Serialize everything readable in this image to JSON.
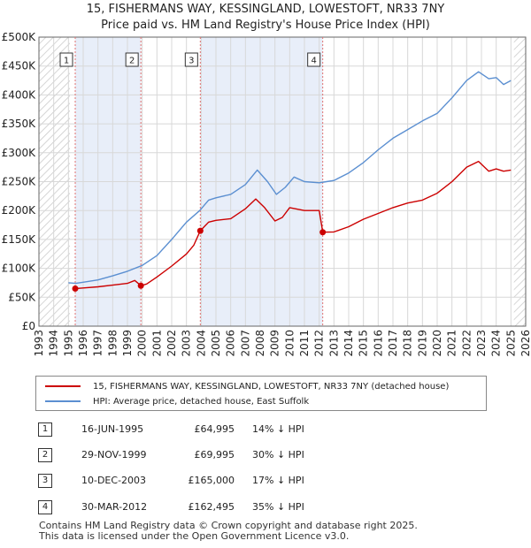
{
  "chart_data": {
    "type": "line",
    "title": "15, FISHERMANS WAY, KESSINGLAND, LOWESTOFT, NR33 7NY",
    "subtitle": "Price paid vs. HM Land Registry's House Price Index (HPI)",
    "xlim": [
      1993,
      2026
    ],
    "ylim": [
      0,
      500000
    ],
    "y_ticks": [
      0,
      50000,
      100000,
      150000,
      200000,
      250000,
      300000,
      350000,
      400000,
      450000,
      500000
    ],
    "y_tick_labels": [
      "£0",
      "£50K",
      "£100K",
      "£150K",
      "£200K",
      "£250K",
      "£300K",
      "£350K",
      "£400K",
      "£450K",
      "£500K"
    ],
    "x_ticks": [
      1993,
      1994,
      1995,
      1996,
      1997,
      1998,
      1999,
      2000,
      2001,
      2002,
      2003,
      2004,
      2005,
      2006,
      2007,
      2008,
      2009,
      2010,
      2011,
      2012,
      2013,
      2014,
      2015,
      2016,
      2017,
      2018,
      2019,
      2020,
      2021,
      2022,
      2023,
      2024,
      2025,
      2026
    ],
    "hatched_ranges": [
      [
        1993,
        1995.1
      ],
      [
        2025.2,
        2026
      ]
    ],
    "series": [
      {
        "name": "15, FISHERMANS WAY, KESSINGLAND, LOWESTOFT, NR33 7NY (detached house)",
        "color": "#cc0000",
        "x": [
          1995.46,
          1996,
          1997,
          1998,
          1999.0,
          1999.5,
          1999.91,
          2000.3,
          2001,
          2002,
          2003.0,
          2003.5,
          2003.94,
          2004.5,
          2005,
          2006,
          2007,
          2007.7,
          2008.3,
          2009,
          2009.5,
          2010,
          2011,
          2012.0,
          2012.24,
          2013,
          2014,
          2015,
          2016,
          2017,
          2018,
          2019,
          2020,
          2021,
          2022,
          2022.8,
          2023.5,
          2024,
          2024.5,
          2025.0
        ],
        "values": [
          64995,
          66000,
          68000,
          71000,
          74000,
          79000,
          69995,
          73000,
          85000,
          104000,
          125000,
          140000,
          165000,
          180000,
          183000,
          186000,
          203000,
          220000,
          205000,
          182000,
          188000,
          205000,
          200000,
          200000,
          162495,
          163000,
          172000,
          185000,
          195000,
          205000,
          213000,
          218000,
          230000,
          250000,
          275000,
          285000,
          268000,
          272000,
          268000,
          270000
        ]
      },
      {
        "name": "HPI: Average price, detached house, East Suffolk",
        "color": "#5b8fd1",
        "x": [
          1995.0,
          1995.5,
          1996,
          1997,
          1998,
          1999,
          2000,
          2001,
          2002,
          2003,
          2003.9,
          2004.5,
          2005,
          2006,
          2007,
          2007.8,
          2008.5,
          2009.1,
          2009.7,
          2010.3,
          2011,
          2012,
          2012.5,
          2013,
          2014,
          2015,
          2016,
          2017,
          2018,
          2019,
          2020,
          2021,
          2022,
          2022.8,
          2023.5,
          2024,
          2024.5,
          2025.0
        ],
        "values": [
          75000,
          74000,
          76000,
          80000,
          87000,
          95000,
          105000,
          122000,
          150000,
          180000,
          200000,
          218000,
          222000,
          228000,
          245000,
          270000,
          250000,
          228000,
          240000,
          258000,
          250000,
          248000,
          250000,
          252000,
          265000,
          283000,
          305000,
          325000,
          340000,
          355000,
          368000,
          395000,
          425000,
          440000,
          428000,
          430000,
          418000,
          425000
        ]
      }
    ],
    "transactions": [
      {
        "n": "1",
        "year": 1995.46,
        "price": 64995
      },
      {
        "n": "2",
        "year": 1999.91,
        "price": 69995
      },
      {
        "n": "3",
        "year": 2003.94,
        "price": 165000
      },
      {
        "n": "4",
        "year": 2012.24,
        "price": 162495
      }
    ]
  },
  "legend": {
    "property_label": "15, FISHERMANS WAY, KESSINGLAND, LOWESTOFT, NR33 7NY (detached house)",
    "hpi_label": "HPI: Average price, detached house, East Suffolk"
  },
  "table": [
    {
      "n": "1",
      "date": "16-JUN-1995",
      "price": "£64,995",
      "hpi": "14% ↓ HPI"
    },
    {
      "n": "2",
      "date": "29-NOV-1999",
      "price": "£69,995",
      "hpi": "30% ↓ HPI"
    },
    {
      "n": "3",
      "date": "10-DEC-2003",
      "price": "£165,000",
      "hpi": "17% ↓ HPI"
    },
    {
      "n": "4",
      "date": "30-MAR-2012",
      "price": "£162,495",
      "hpi": "35% ↓ HPI"
    }
  ],
  "footer": {
    "line1": "Contains HM Land Registry data © Crown copyright and database right 2025.",
    "line2": "This data is licensed under the Open Government Licence v3.0."
  },
  "colors": {
    "property": "#cc0000",
    "hpi": "#5b8fd1",
    "marker_line": "#e07070",
    "grid": "#d8d8d8"
  }
}
